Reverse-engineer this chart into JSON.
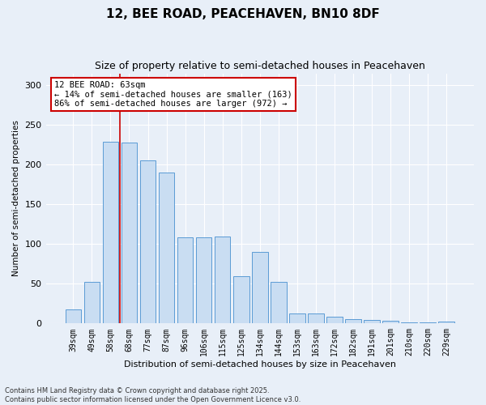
{
  "title1": "12, BEE ROAD, PEACEHAVEN, BN10 8DF",
  "title2": "Size of property relative to semi-detached houses in Peacehaven",
  "xlabel": "Distribution of semi-detached houses by size in Peacehaven",
  "ylabel": "Number of semi-detached properties",
  "categories": [
    "39sqm",
    "49sqm",
    "58sqm",
    "68sqm",
    "77sqm",
    "87sqm",
    "96sqm",
    "106sqm",
    "115sqm",
    "125sqm",
    "134sqm",
    "144sqm",
    "153sqm",
    "163sqm",
    "172sqm",
    "182sqm",
    "191sqm",
    "201sqm",
    "210sqm",
    "220sqm",
    "229sqm"
  ],
  "values": [
    18,
    52,
    229,
    228,
    205,
    190,
    108,
    108,
    110,
    59,
    90,
    52,
    13,
    13,
    8,
    5,
    4,
    3,
    1,
    1,
    2
  ],
  "bar_color": "#c9ddf2",
  "bar_edge_color": "#5b9bd5",
  "annotation_text": "12 BEE ROAD: 63sqm\n← 14% of semi-detached houses are smaller (163)\n86% of semi-detached houses are larger (972) →",
  "annotation_box_color": "#ffffff",
  "annotation_box_edge_color": "#cc0000",
  "vline_color": "#cc0000",
  "vline_x": 2.5,
  "ylim": [
    0,
    315
  ],
  "yticks": [
    0,
    50,
    100,
    150,
    200,
    250,
    300
  ],
  "footer": "Contains HM Land Registry data © Crown copyright and database right 2025.\nContains public sector information licensed under the Open Government Licence v3.0.",
  "bg_color": "#e8eff8",
  "title1_fontsize": 11,
  "title2_fontsize": 9,
  "annotation_fontsize": 7.5,
  "xlabel_fontsize": 8,
  "ylabel_fontsize": 7.5,
  "tick_fontsize": 7,
  "footer_fontsize": 6
}
